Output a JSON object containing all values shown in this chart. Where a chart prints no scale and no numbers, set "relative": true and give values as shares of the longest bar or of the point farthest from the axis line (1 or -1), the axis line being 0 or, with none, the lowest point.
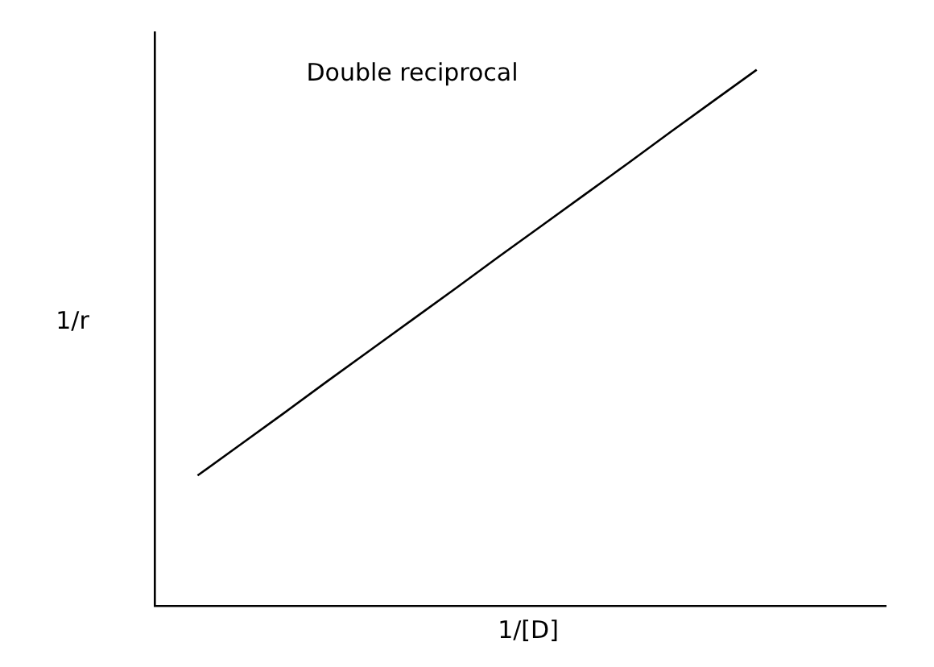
{
  "chart_data": {
    "type": "line",
    "relative": true,
    "xlabel": "1/[D]",
    "ylabel": "1/r",
    "annotations": [
      "Double reciprocal"
    ],
    "color": "#000000",
    "marker": "none",
    "line_style": "solid",
    "grid": false,
    "legend": false,
    "tick_labels": false,
    "categories": [
      null,
      null,
      null,
      null,
      null,
      null,
      null,
      null,
      null,
      null,
      null,
      null,
      null,
      null,
      null,
      null,
      null,
      null
    ],
    "values": [
      null,
      0.243,
      0.301,
      0.359,
      0.418,
      0.476,
      0.534,
      0.592,
      0.651,
      0.709,
      0.767,
      0.825,
      0.884,
      0.942,
      1,
      null,
      null,
      null
    ]
  }
}
